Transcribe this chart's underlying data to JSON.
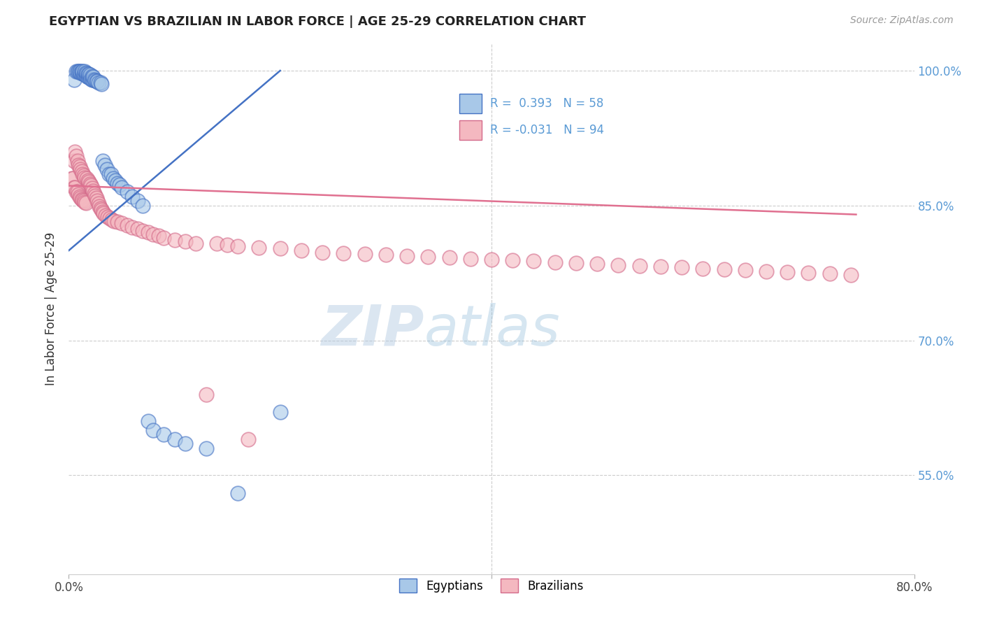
{
  "title": "EGYPTIAN VS BRAZILIAN IN LABOR FORCE | AGE 25-29 CORRELATION CHART",
  "source": "Source: ZipAtlas.com",
  "ylabel": "In Labor Force | Age 25-29",
  "xlim": [
    0.0,
    0.8
  ],
  "ylim": [
    0.44,
    1.03
  ],
  "yticks": [
    0.55,
    0.7,
    0.85,
    1.0
  ],
  "ytick_labels": [
    "55.0%",
    "70.0%",
    "85.0%",
    "100.0%"
  ],
  "legend_R_blue": "0.393",
  "legend_N_blue": "58",
  "legend_R_pink": "-0.031",
  "legend_N_pink": "94",
  "blue_fill": "#a8c8e8",
  "blue_edge": "#4472c4",
  "pink_fill": "#f4b8c0",
  "pink_edge": "#d46a8a",
  "blue_line_color": "#4472c4",
  "pink_line_color": "#e07090",
  "watermark_zip": "ZIP",
  "watermark_atlas": "atlas",
  "blue_scatter_x": [
    0.005,
    0.007,
    0.008,
    0.009,
    0.01,
    0.01,
    0.011,
    0.012,
    0.012,
    0.013,
    0.013,
    0.014,
    0.015,
    0.015,
    0.016,
    0.016,
    0.017,
    0.017,
    0.018,
    0.018,
    0.019,
    0.019,
    0.02,
    0.02,
    0.021,
    0.022,
    0.022,
    0.023,
    0.023,
    0.024,
    0.025,
    0.026,
    0.027,
    0.028,
    0.03,
    0.031,
    0.032,
    0.034,
    0.036,
    0.038,
    0.04,
    0.042,
    0.044,
    0.046,
    0.048,
    0.05,
    0.055,
    0.06,
    0.065,
    0.07,
    0.075,
    0.08,
    0.09,
    0.1,
    0.11,
    0.13,
    0.16,
    0.2
  ],
  "blue_scatter_y": [
    0.99,
    0.999,
    0.999,
    0.999,
    0.999,
    0.999,
    0.998,
    0.998,
    0.999,
    0.997,
    0.999,
    0.996,
    0.996,
    0.999,
    0.995,
    0.998,
    0.994,
    0.997,
    0.993,
    0.996,
    0.993,
    0.996,
    0.992,
    0.995,
    0.991,
    0.99,
    0.994,
    0.99,
    0.993,
    0.99,
    0.989,
    0.988,
    0.988,
    0.987,
    0.987,
    0.985,
    0.9,
    0.895,
    0.89,
    0.885,
    0.885,
    0.88,
    0.878,
    0.875,
    0.873,
    0.87,
    0.865,
    0.86,
    0.855,
    0.85,
    0.61,
    0.6,
    0.595,
    0.59,
    0.585,
    0.58,
    0.53,
    0.62
  ],
  "pink_scatter_x": [
    0.003,
    0.004,
    0.005,
    0.005,
    0.006,
    0.006,
    0.007,
    0.007,
    0.008,
    0.008,
    0.009,
    0.009,
    0.01,
    0.01,
    0.011,
    0.011,
    0.012,
    0.012,
    0.013,
    0.013,
    0.014,
    0.014,
    0.015,
    0.015,
    0.016,
    0.017,
    0.018,
    0.019,
    0.02,
    0.021,
    0.022,
    0.023,
    0.024,
    0.025,
    0.026,
    0.027,
    0.028,
    0.029,
    0.03,
    0.031,
    0.032,
    0.033,
    0.035,
    0.037,
    0.039,
    0.041,
    0.043,
    0.046,
    0.05,
    0.055,
    0.06,
    0.065,
    0.07,
    0.075,
    0.08,
    0.085,
    0.09,
    0.1,
    0.11,
    0.12,
    0.13,
    0.14,
    0.15,
    0.16,
    0.17,
    0.18,
    0.2,
    0.22,
    0.24,
    0.26,
    0.28,
    0.3,
    0.32,
    0.34,
    0.36,
    0.38,
    0.4,
    0.42,
    0.44,
    0.46,
    0.48,
    0.5,
    0.52,
    0.54,
    0.56,
    0.58,
    0.6,
    0.62,
    0.64,
    0.66,
    0.68,
    0.7,
    0.72,
    0.74
  ],
  "pink_scatter_y": [
    0.88,
    0.88,
    0.87,
    0.9,
    0.87,
    0.91,
    0.865,
    0.905,
    0.865,
    0.9,
    0.862,
    0.895,
    0.86,
    0.893,
    0.858,
    0.89,
    0.857,
    0.888,
    0.856,
    0.885,
    0.855,
    0.883,
    0.854,
    0.881,
    0.853,
    0.88,
    0.878,
    0.876,
    0.874,
    0.872,
    0.869,
    0.866,
    0.863,
    0.861,
    0.858,
    0.855,
    0.852,
    0.849,
    0.847,
    0.845,
    0.843,
    0.841,
    0.839,
    0.837,
    0.836,
    0.834,
    0.833,
    0.832,
    0.83,
    0.828,
    0.826,
    0.824,
    0.822,
    0.82,
    0.818,
    0.816,
    0.814,
    0.812,
    0.81,
    0.808,
    0.64,
    0.808,
    0.806,
    0.805,
    0.59,
    0.803,
    0.802,
    0.8,
    0.798,
    0.797,
    0.796,
    0.795,
    0.794,
    0.793,
    0.792,
    0.791,
    0.79,
    0.789,
    0.788,
    0.787,
    0.786,
    0.785,
    0.784,
    0.783,
    0.782,
    0.781,
    0.78,
    0.779,
    0.778,
    0.777,
    0.776,
    0.775,
    0.774,
    0.773
  ],
  "blue_trend_x": [
    0.0,
    0.2
  ],
  "blue_trend_y": [
    0.8,
    1.0
  ],
  "pink_trend_x": [
    0.0,
    0.745
  ],
  "pink_trend_y": [
    0.872,
    0.84
  ]
}
